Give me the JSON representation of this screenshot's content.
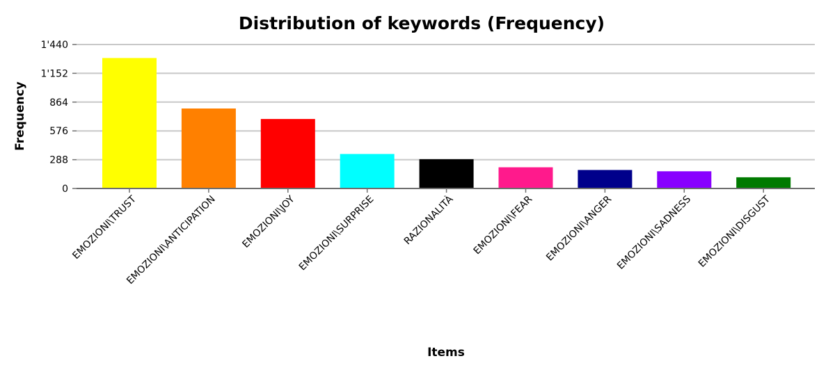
{
  "chart_data": {
    "type": "bar",
    "title": "Distribution of keywords (Frequency)",
    "xlabel": "Items",
    "ylabel": "Frequency",
    "ylim": [
      0,
      1440
    ],
    "yticks": [
      0,
      288,
      576,
      864,
      1152,
      1440
    ],
    "ytick_labels": [
      "0",
      "288",
      "576",
      "864",
      "1'152",
      "1'440"
    ],
    "grid": true,
    "categories": [
      "EMOZIONI\\TRUST",
      "EMOZIONI\\ANTICIPATION",
      "EMOZIONI\\JOY",
      "EMOZIONI\\SURPRISE",
      "RAZIONALITÀ",
      "EMOZIONI\\FEAR",
      "EMOZIONI\\ANGER",
      "EMOZIONI\\SADNESS",
      "EMOZIONI\\DISGUST"
    ],
    "values": [
      1305,
      800,
      695,
      345,
      293,
      212,
      185,
      172,
      112
    ],
    "colors": [
      "#ffff00",
      "#ff8000",
      "#ff0000",
      "#00ffff",
      "#000000",
      "#ff1a8c",
      "#00008b",
      "#8800ff",
      "#007a00"
    ]
  }
}
